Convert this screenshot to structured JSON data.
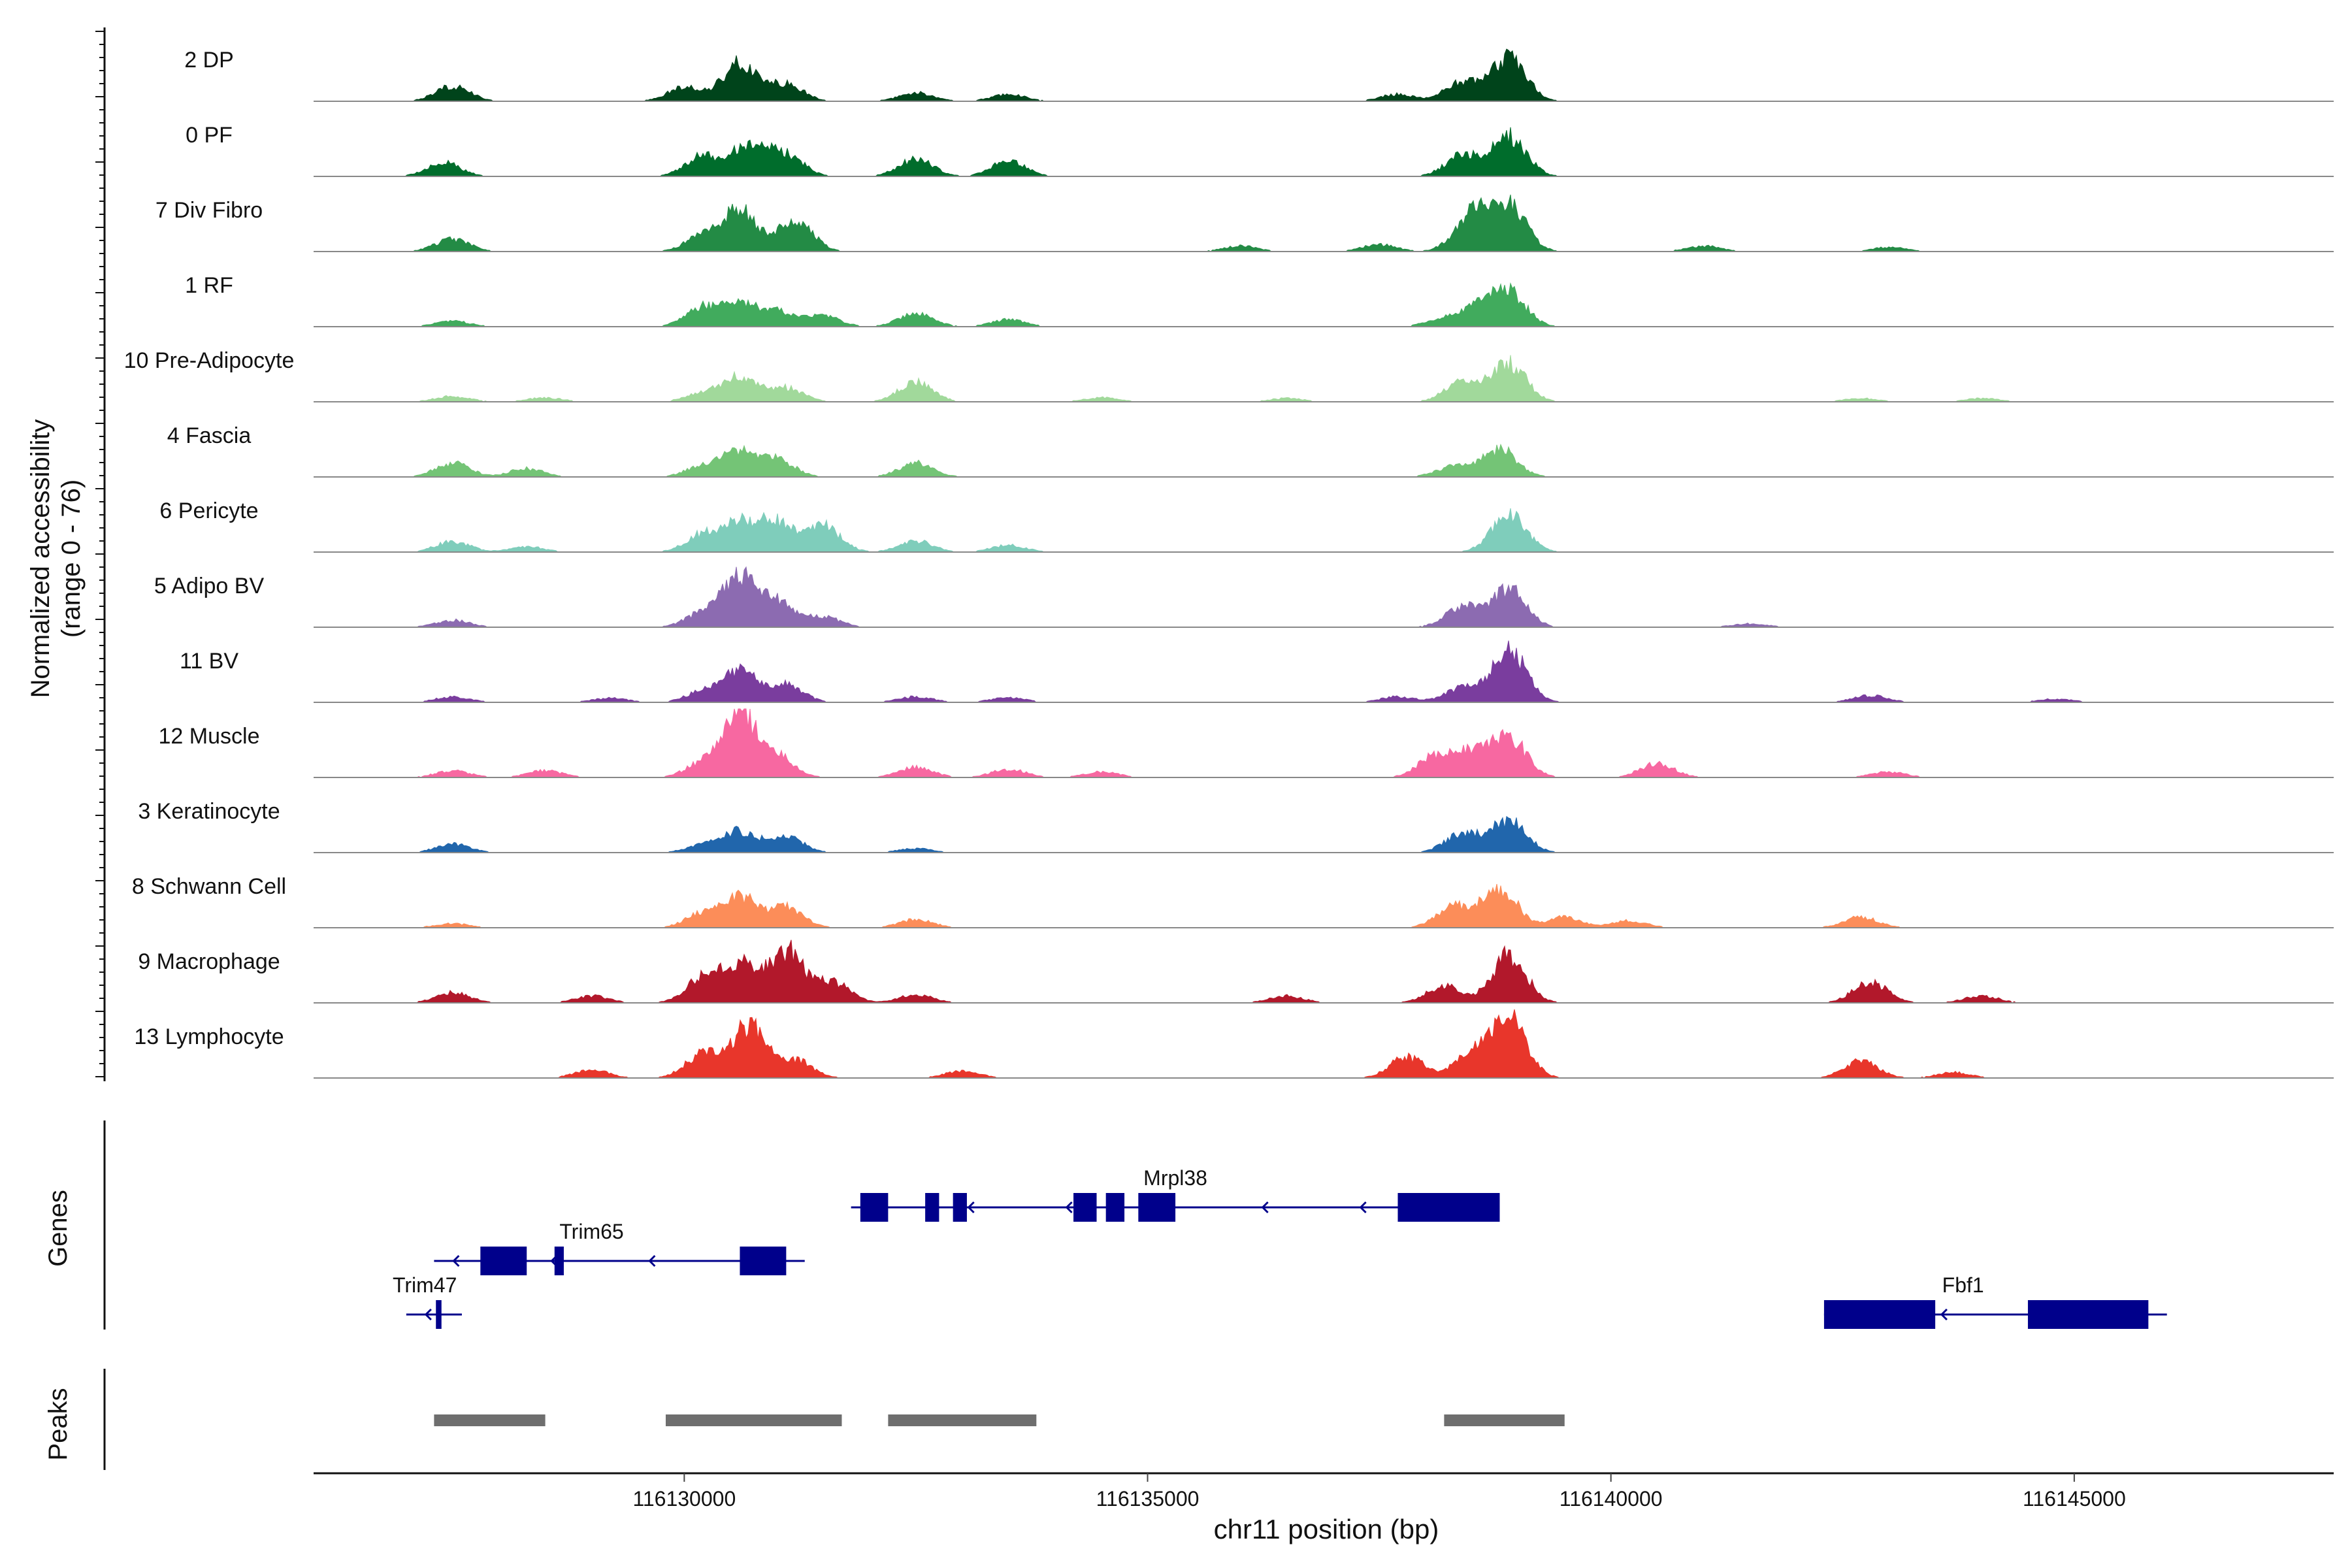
{
  "chart_data": {
    "type": "area",
    "chrom": "chr11",
    "xlabel": "chr11 position (bp)",
    "ylabel": "Normalized accessibility",
    "ylabel_range": "(range 0 - 76)",
    "xlim": [
      116126000,
      116147800
    ],
    "x_ticks": [
      116130000,
      116135000,
      116140000,
      116145000
    ],
    "x_tick_labels": [
      "116130000",
      "116135000",
      "116140000",
      "116145000"
    ],
    "tracks_title_genes": "Genes",
    "tracks_title_peaks": "Peaks",
    "colors": {
      "2 DP": "#00441b",
      "0 PF": "#006d2c",
      "7 Div Fibro": "#238b45",
      "1 RF": "#41ab5d",
      "10 Pre-Adipocyte": "#a1d99b",
      "4 Fascia": "#74c476",
      "6 Pericyte": "#7fcdbb",
      "5 Adipo BV": "#8c6bb1",
      "11 BV": "#7a3d9e",
      "12 Muscle": "#f768a1",
      "3 Keratinocyte": "#2166ac",
      "8 Schwann Cell": "#fc8d59",
      "9 Macrophage": "#b2182b",
      "13 Lymphocyte": "#e8362b",
      "gene": "#00008b",
      "peak": "#6e6e6e"
    },
    "series": [
      {
        "name": "2 DP",
        "peaks": [
          [
            116127500,
            0.22
          ],
          [
            116130000,
            0.2
          ],
          [
            116130600,
            0.55
          ],
          [
            116131100,
            0.25
          ],
          [
            116132500,
            0.12
          ],
          [
            116133500,
            0.1
          ],
          [
            116137700,
            0.1
          ],
          [
            116138400,
            0.28
          ],
          [
            116138900,
            0.62
          ]
        ]
      },
      {
        "name": "0 PF",
        "peaks": [
          [
            116127400,
            0.2
          ],
          [
            116130200,
            0.3
          ],
          [
            116130700,
            0.45
          ],
          [
            116131100,
            0.3
          ],
          [
            116132500,
            0.25
          ],
          [
            116133500,
            0.22
          ],
          [
            116138400,
            0.3
          ],
          [
            116138900,
            0.58
          ]
        ]
      },
      {
        "name": "7 Div Fibro",
        "peaks": [
          [
            116127500,
            0.18
          ],
          [
            116130200,
            0.22
          ],
          [
            116130600,
            0.6
          ],
          [
            116131200,
            0.45
          ],
          [
            116136000,
            0.08
          ],
          [
            116137500,
            0.1
          ],
          [
            116138500,
            0.55
          ],
          [
            116138900,
            0.66
          ],
          [
            116141000,
            0.08
          ],
          [
            116143000,
            0.06
          ]
        ]
      },
      {
        "name": "1 RF",
        "peaks": [
          [
            116127500,
            0.08
          ],
          [
            116130200,
            0.28
          ],
          [
            116130600,
            0.3
          ],
          [
            116131000,
            0.22
          ],
          [
            116131500,
            0.15
          ],
          [
            116132500,
            0.2
          ],
          [
            116133500,
            0.1
          ],
          [
            116138200,
            0.12
          ],
          [
            116138600,
            0.3
          ],
          [
            116138900,
            0.46
          ]
        ]
      },
      {
        "name": "10 Pre-Adipocyte",
        "peaks": [
          [
            116127500,
            0.08
          ],
          [
            116128500,
            0.06
          ],
          [
            116130200,
            0.12
          ],
          [
            116130600,
            0.35
          ],
          [
            116131100,
            0.2
          ],
          [
            116132500,
            0.28
          ],
          [
            116134500,
            0.06
          ],
          [
            116136500,
            0.05
          ],
          [
            116138400,
            0.3
          ],
          [
            116138900,
            0.55
          ],
          [
            116142700,
            0.05
          ],
          [
            116144000,
            0.05
          ]
        ]
      },
      {
        "name": "4 Fascia",
        "peaks": [
          [
            116127500,
            0.2
          ],
          [
            116128300,
            0.12
          ],
          [
            116130200,
            0.15
          ],
          [
            116130600,
            0.36
          ],
          [
            116131000,
            0.25
          ],
          [
            116132500,
            0.2
          ],
          [
            116138300,
            0.15
          ],
          [
            116138800,
            0.4
          ]
        ]
      },
      {
        "name": "6 Pericyte",
        "peaks": [
          [
            116127500,
            0.15
          ],
          [
            116128300,
            0.08
          ],
          [
            116130200,
            0.25
          ],
          [
            116130600,
            0.4
          ],
          [
            116131000,
            0.42
          ],
          [
            116131500,
            0.38
          ],
          [
            116132500,
            0.16
          ],
          [
            116133500,
            0.1
          ],
          [
            116138900,
            0.55
          ]
        ]
      },
      {
        "name": "5 Adipo BV",
        "peaks": [
          [
            116127500,
            0.1
          ],
          [
            116130200,
            0.2
          ],
          [
            116130600,
            0.7
          ],
          [
            116131000,
            0.35
          ],
          [
            116131500,
            0.15
          ],
          [
            116138400,
            0.3
          ],
          [
            116138900,
            0.55
          ],
          [
            116141500,
            0.05
          ]
        ]
      },
      {
        "name": "11 BV",
        "peaks": [
          [
            116127500,
            0.08
          ],
          [
            116129200,
            0.06
          ],
          [
            116130200,
            0.15
          ],
          [
            116130600,
            0.45
          ],
          [
            116131100,
            0.25
          ],
          [
            116132500,
            0.08
          ],
          [
            116133500,
            0.07
          ],
          [
            116137700,
            0.08
          ],
          [
            116138400,
            0.2
          ],
          [
            116138900,
            0.75
          ],
          [
            116142800,
            0.1
          ],
          [
            116144800,
            0.05
          ]
        ]
      },
      {
        "name": "12 Muscle",
        "peaks": [
          [
            116127500,
            0.1
          ],
          [
            116128500,
            0.1
          ],
          [
            116130200,
            0.2
          ],
          [
            116130600,
            0.9
          ],
          [
            116131000,
            0.3
          ],
          [
            116132500,
            0.15
          ],
          [
            116133500,
            0.12
          ],
          [
            116134500,
            0.08
          ],
          [
            116138100,
            0.3
          ],
          [
            116138500,
            0.35
          ],
          [
            116138900,
            0.58
          ],
          [
            116140500,
            0.2
          ],
          [
            116143000,
            0.08
          ]
        ]
      },
      {
        "name": "3 Keratinocyte",
        "peaks": [
          [
            116127500,
            0.12
          ],
          [
            116130200,
            0.1
          ],
          [
            116130600,
            0.3
          ],
          [
            116131100,
            0.22
          ],
          [
            116132500,
            0.06
          ],
          [
            116138400,
            0.28
          ],
          [
            116138900,
            0.46
          ]
        ]
      },
      {
        "name": "8 Schwann Cell",
        "peaks": [
          [
            116127500,
            0.06
          ],
          [
            116130200,
            0.2
          ],
          [
            116130600,
            0.45
          ],
          [
            116131100,
            0.3
          ],
          [
            116132500,
            0.12
          ],
          [
            116138300,
            0.3
          ],
          [
            116138800,
            0.58
          ],
          [
            116139500,
            0.15
          ],
          [
            116140200,
            0.1
          ],
          [
            116142700,
            0.15
          ]
        ]
      },
      {
        "name": "9 Macrophage",
        "peaks": [
          [
            116127500,
            0.15
          ],
          [
            116129000,
            0.1
          ],
          [
            116130200,
            0.35
          ],
          [
            116130600,
            0.55
          ],
          [
            116131100,
            0.75
          ],
          [
            116131600,
            0.3
          ],
          [
            116132500,
            0.12
          ],
          [
            116136500,
            0.1
          ],
          [
            116138200,
            0.25
          ],
          [
            116138900,
            0.7
          ],
          [
            116142800,
            0.3
          ],
          [
            116144000,
            0.1
          ]
        ]
      },
      {
        "name": "13 Lymphocyte",
        "peaks": [
          [
            116129000,
            0.12
          ],
          [
            116130200,
            0.35
          ],
          [
            116130700,
            0.75
          ],
          [
            116131200,
            0.25
          ],
          [
            116133000,
            0.1
          ],
          [
            116137800,
            0.3
          ],
          [
            116138500,
            0.35
          ],
          [
            116138900,
            0.9
          ],
          [
            116142700,
            0.25
          ],
          [
            116143700,
            0.08
          ]
        ]
      }
    ],
    "genes": [
      {
        "name": "Trim65",
        "start": 116127300,
        "end": 116131300,
        "strand": "-",
        "row": 2,
        "label_pos": 116129000,
        "exons": [
          [
            116127800,
            116128300
          ],
          [
            116128600,
            116128700
          ],
          [
            116130600,
            116131100
          ]
        ]
      },
      {
        "name": "Trim47",
        "start": 116127000,
        "end": 116127600,
        "strand": "-",
        "row": 3,
        "label_pos": 116127200,
        "exons": [
          [
            116127320,
            116127380
          ]
        ]
      },
      {
        "name": "Mrpl38",
        "start": 116131800,
        "end": 116138800,
        "strand": "-",
        "row": 1,
        "label_pos": 116135300,
        "exons": [
          [
            116131900,
            116132200
          ],
          [
            116132600,
            116132750
          ],
          [
            116132900,
            116133050
          ],
          [
            116134200,
            116134450
          ],
          [
            116134550,
            116134750
          ],
          [
            116134900,
            116135300
          ],
          [
            116137700,
            116138800
          ]
        ]
      },
      {
        "name": "Fbf1",
        "start": 116142300,
        "end": 116146000,
        "strand": "-",
        "row": 3,
        "label_pos": 116143800,
        "exons": [
          [
            116142300,
            116143500
          ],
          [
            116144500,
            116145800
          ]
        ]
      }
    ],
    "peaks": [
      [
        116127300,
        116128500
      ],
      [
        116129800,
        116131700
      ],
      [
        116132200,
        116133800
      ],
      [
        116138200,
        116139500
      ]
    ]
  }
}
